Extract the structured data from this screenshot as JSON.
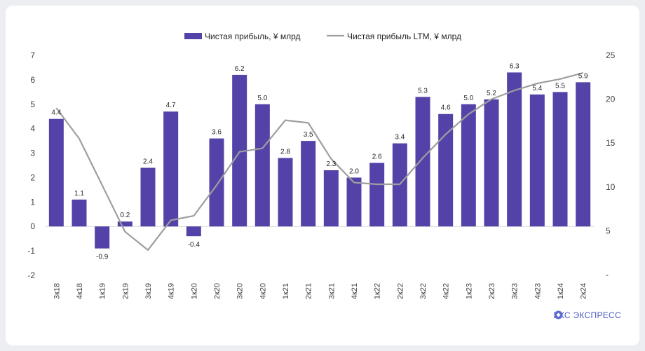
{
  "brand": {
    "name": "БКС ЭКСПРЕСС",
    "color": "#4b5cc4"
  },
  "colors": {
    "bar": "#5442a8",
    "line": "#9e9e9e",
    "grid": "#d9d9d9"
  },
  "chart_data": {
    "type": "bar",
    "categories": [
      "3к18",
      "4к18",
      "1к19",
      "2к19",
      "3к19",
      "4к19",
      "1к20",
      "2к20",
      "3к20",
      "4к20",
      "1к21",
      "2к21",
      "3к21",
      "4к21",
      "1к22",
      "2к22",
      "3к22",
      "4к22",
      "1к23",
      "2к23",
      "3к23",
      "4к23",
      "1к24",
      "2к24"
    ],
    "series": [
      {
        "name": "Чистая прибыль, ¥ млрд",
        "type": "bar",
        "axis": "left",
        "values": [
          4.4,
          1.1,
          -0.9,
          0.2,
          2.4,
          4.7,
          -0.4,
          3.6,
          6.2,
          5.0,
          2.8,
          3.5,
          2.3,
          2.0,
          2.6,
          3.4,
          5.3,
          4.6,
          5.0,
          5.2,
          6.3,
          5.4,
          5.5,
          5.9
        ],
        "labels": [
          "4.4",
          "1.1",
          "-0.9",
          "0.2",
          "2.4",
          "4.7",
          "-0.4",
          "3.6",
          "6.2",
          "5.0",
          "2.8",
          "3.5",
          "2.3",
          "2.0",
          "2.6",
          "3.4",
          "5.3",
          "4.6",
          "5.0",
          "5.2",
          "6.3",
          "5.4",
          "5.5",
          "5.9"
        ]
      },
      {
        "name": "Чистая прибыль LTM, ¥ млрд",
        "type": "line",
        "axis": "right",
        "values": [
          19.0,
          15.5,
          10.2,
          4.9,
          2.8,
          6.2,
          6.7,
          10.2,
          14.0,
          14.4,
          17.6,
          17.3,
          13.2,
          10.5,
          10.3,
          10.3,
          13.3,
          16.0,
          18.3,
          20.0,
          21.0,
          21.8,
          22.3,
          23.0
        ]
      }
    ],
    "y_left": {
      "min": -2,
      "max": 7,
      "ticks": [
        "-2",
        "-1",
        "0",
        "1",
        "2",
        "3",
        "4",
        "5",
        "6",
        "7"
      ]
    },
    "y_right": {
      "min": 0,
      "max": 25,
      "ticks": [
        "-",
        "5",
        "10",
        "15",
        "20",
        "25"
      ]
    },
    "legend": "top-center",
    "grid": false
  }
}
